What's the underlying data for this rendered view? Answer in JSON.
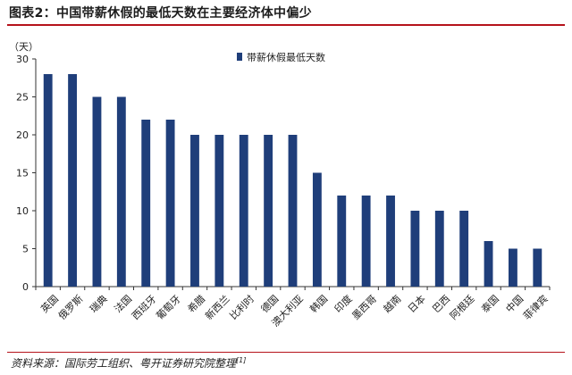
{
  "header": {
    "title": "图表2：中国带薪休假的最低天数在主要经济体中偏少"
  },
  "footer": {
    "source": "资料来源：国际劳工组织、粤开证券研究院整理",
    "source_ref": "[1]"
  },
  "colors": {
    "bar": "#1f3e7a",
    "accent": "#b5121b",
    "axis": "#333333"
  },
  "chart_data": {
    "type": "bar",
    "title": "",
    "ylabel": "（天）",
    "xlabel": "",
    "ylim": [
      0,
      30
    ],
    "yticks": [
      0,
      5,
      10,
      15,
      20,
      25,
      30
    ],
    "grid": false,
    "legend_position": "top-right",
    "categories": [
      "英国",
      "俄罗斯",
      "瑞典",
      "法国",
      "西班牙",
      "葡萄牙",
      "希腊",
      "新西兰",
      "比利时",
      "德国",
      "澳大利亚",
      "韩国",
      "印度",
      "墨西哥",
      "越南",
      "日本",
      "巴西",
      "阿根廷",
      "泰国",
      "中国",
      "菲律宾"
    ],
    "series": [
      {
        "name": "带薪休假最低天数",
        "values": [
          28,
          28,
          25,
          25,
          22,
          22,
          20,
          20,
          20,
          20,
          20,
          15,
          12,
          12,
          12,
          10,
          10,
          10,
          6,
          5,
          5
        ]
      }
    ]
  }
}
